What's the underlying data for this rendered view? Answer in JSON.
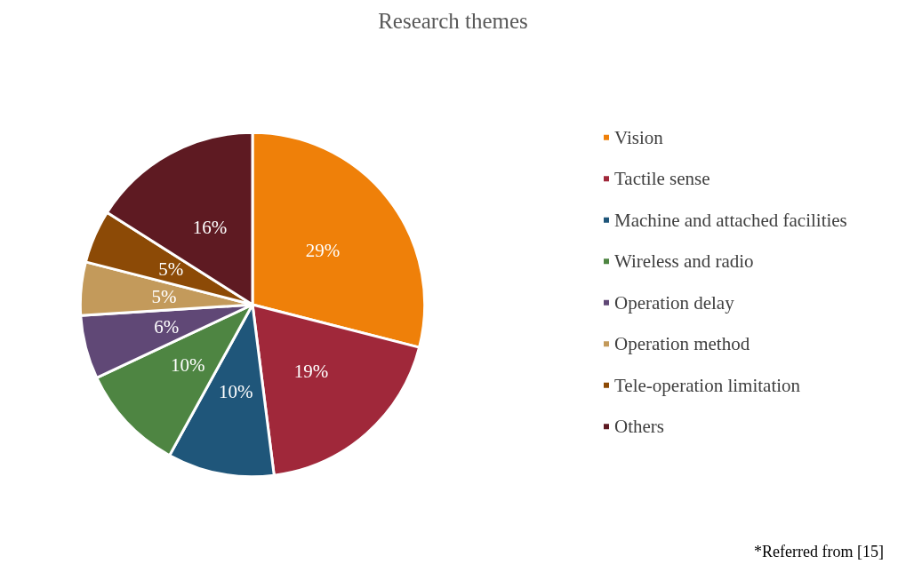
{
  "chart_data": {
    "type": "pie",
    "title": "Research themes",
    "categories": [
      "Vision",
      "Tactile sense",
      "Machine and attached facilities",
      "Wireless and radio",
      "Operation delay",
      "Operation method",
      "Tele-operation limitation",
      "Others"
    ],
    "values": [
      29,
      19,
      10,
      10,
      6,
      5,
      5,
      16
    ],
    "value_labels": [
      "29%",
      "19%",
      "10%",
      "10%",
      "6%",
      "5%",
      "5%",
      "16%"
    ],
    "colors": [
      "#ef8009",
      "#a0283a",
      "#1f567a",
      "#4e8542",
      "#604876",
      "#c39a5b",
      "#8c4a06",
      "#5e1a22"
    ],
    "legend": "right",
    "annotations": [
      "*Referred from [15]"
    ]
  }
}
